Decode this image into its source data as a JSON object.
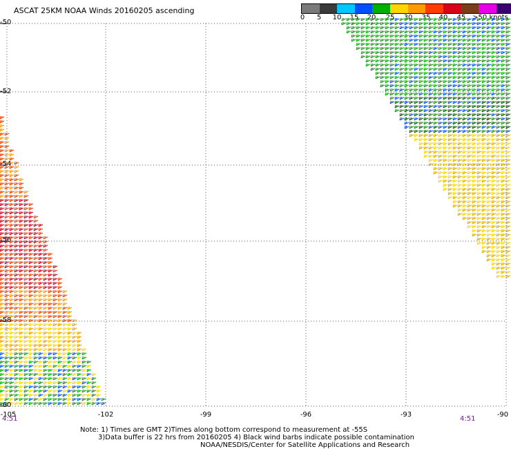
{
  "title": "ASCAT 25KM NOAA Winds 20160205 ascending",
  "colorbar": {
    "labels": [
      "0",
      "5",
      "10",
      "15",
      "20",
      "25",
      "30",
      "35",
      "40",
      "45",
      ">50 knots"
    ],
    "colors": [
      "#7a7a7a",
      "#3a3a3a",
      "#00c8ff",
      "#0050ff",
      "#00b000",
      "#ffd400",
      "#ff9a00",
      "#ff3d00",
      "#d8001a",
      "#7a3d1a",
      "#e800e8",
      "#3a0070"
    ]
  },
  "axes": {
    "y_labels": [
      "-50",
      "-52",
      "-54",
      "-56",
      "-58",
      "-60"
    ],
    "x_labels": [
      "-105",
      "-102",
      "-99",
      "-96",
      "-93",
      "-90"
    ]
  },
  "times": {
    "left": "4:51",
    "right": "4:51"
  },
  "notes": {
    "line1": "Note: 1) Times are GMT 2)Times along bottom correspond to measurement at -55S",
    "line2": "3)Data buffer is 22 hrs from 20160205 4) Black wind barbs indicate possible contamination",
    "line3": "NOAA/NESDIS/Center for Satellite Applications and Research"
  },
  "colors": {
    "grid": "#555555",
    "time_label": "#6b1a8a"
  }
}
